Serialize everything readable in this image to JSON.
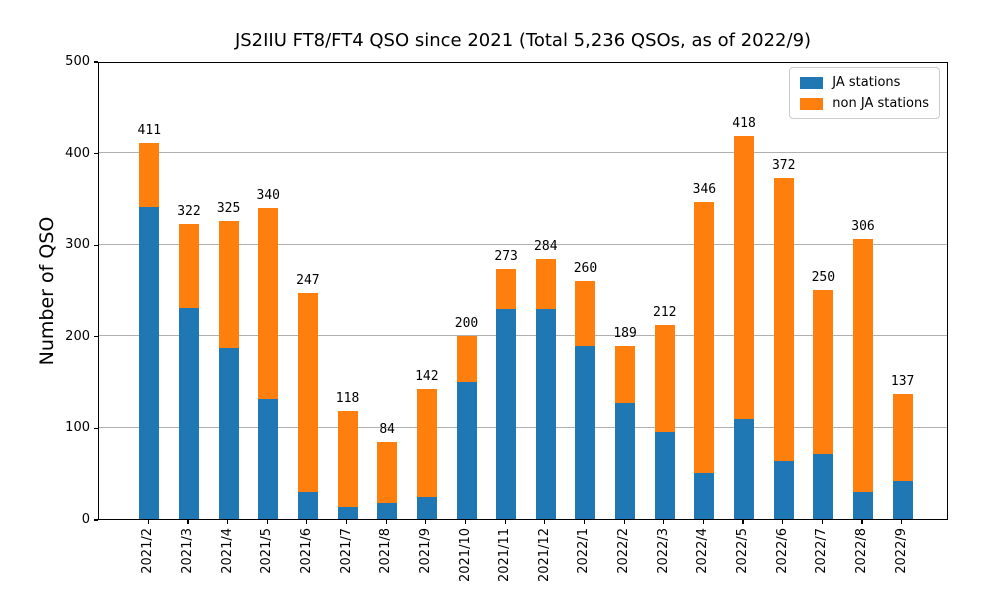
{
  "chart_data": {
    "type": "bar",
    "stacked": true,
    "title": "JS2IIU FT8/FT4 QSO since 2021 (Total 5,236 QSOs, as of 2022/9)",
    "ylabel": "Number of QSO",
    "ylim": [
      0,
      500
    ],
    "yticks": [
      0,
      100,
      200,
      300,
      400,
      500
    ],
    "grid": true,
    "grid_color": "#b0b0b0",
    "legend_position": "upper right",
    "categories": [
      "2021/2",
      "2021/3",
      "2021/4",
      "2021/5",
      "2021/6",
      "2021/7",
      "2021/8",
      "2021/9",
      "2021/10",
      "2021/11",
      "2021/12",
      "2022/1",
      "2022/2",
      "2022/3",
      "2022/4",
      "2022/5",
      "2022/6",
      "2022/7",
      "2022/8",
      "2022/9"
    ],
    "series": [
      {
        "name": "JA stations",
        "color": "#1f77b4",
        "values": [
          341,
          230,
          187,
          131,
          30,
          13,
          17,
          24,
          150,
          229,
          229,
          189,
          127,
          95,
          50,
          109,
          63,
          71,
          30,
          42
        ]
      },
      {
        "name": "non JA stations",
        "color": "#ff7f0e",
        "values": [
          70,
          92,
          138,
          209,
          217,
          105,
          67,
          118,
          50,
          44,
          55,
          71,
          62,
          117,
          296,
          309,
          309,
          179,
          276,
          95
        ]
      }
    ],
    "totals": [
      411,
      322,
      325,
      340,
      247,
      118,
      84,
      142,
      200,
      273,
      284,
      260,
      189,
      212,
      346,
      418,
      372,
      250,
      306,
      137
    ]
  }
}
